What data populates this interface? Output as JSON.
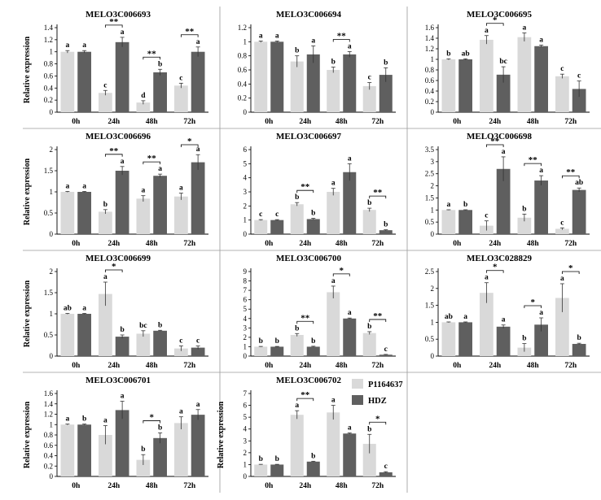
{
  "colors": {
    "P1164637": "#d9d9d9",
    "HDZ": "#5f5f5f",
    "axis": "#000000",
    "divider": "#9a9a9a"
  },
  "legend": {
    "items": [
      {
        "name": "P1164637"
      },
      {
        "name": "HDZ"
      }
    ],
    "placement": "top-left of panel 11"
  },
  "chart_data": [
    {
      "type": "bar",
      "title": "MELO3C006693",
      "ylabel": "Relative expression",
      "categories": [
        "0h",
        "24h",
        "48h",
        "72h"
      ],
      "ylim": [
        0,
        1.4
      ],
      "yticks": [
        "0",
        "0.2",
        "0.4",
        "0.6",
        "0.8",
        "1",
        "1.2",
        "1.4"
      ],
      "series": [
        {
          "name": "P1164637",
          "values": [
            1,
            0.32,
            0.16,
            0.44
          ],
          "err": [
            0.02,
            0.04,
            0.03,
            0.04
          ],
          "letters": [
            "a",
            "c",
            "d",
            "c"
          ]
        },
        {
          "name": "HDZ",
          "values": [
            1,
            1.16,
            0.66,
            1.0
          ],
          "err": [
            0.02,
            0.08,
            0.05,
            0.08
          ],
          "letters": [
            "a",
            "a",
            "b",
            "a"
          ]
        }
      ],
      "sig": [
        "",
        "**",
        "**",
        "**"
      ]
    },
    {
      "type": "bar",
      "title": "MELO3C006694",
      "ylabel": "",
      "categories": [
        "0h",
        "24h",
        "48h",
        "72h"
      ],
      "ylim": [
        0,
        1.2
      ],
      "yticks": [
        "0",
        "0.2",
        "0.4",
        "0.6",
        "0.8",
        "1",
        "1.2"
      ],
      "series": [
        {
          "name": "P1164637",
          "values": [
            1,
            0.72,
            0.6,
            0.37
          ],
          "err": [
            0.01,
            0.08,
            0.04,
            0.05
          ],
          "letters": [
            "a",
            "b",
            "b",
            "c"
          ]
        },
        {
          "name": "HDZ",
          "values": [
            1,
            0.82,
            0.82,
            0.53
          ],
          "err": [
            0.01,
            0.12,
            0.04,
            0.1
          ],
          "letters": [
            "a",
            "a",
            "a",
            "b"
          ]
        }
      ],
      "sig": [
        "",
        "",
        "**",
        ""
      ]
    },
    {
      "type": "bar",
      "title": "MELO3C006695",
      "ylabel": "",
      "categories": [
        "0h",
        "24h",
        "48h",
        "72h"
      ],
      "ylim": [
        0,
        1.6
      ],
      "yticks": [
        "0",
        "0.2",
        "0.4",
        "0.6",
        "0.8",
        "1",
        "1.2",
        "1.4",
        "1.6"
      ],
      "series": [
        {
          "name": "P1164637",
          "values": [
            1,
            1.37,
            1.42,
            0.68
          ],
          "err": [
            0.01,
            0.08,
            0.08,
            0.04
          ],
          "letters": [
            "b",
            "a",
            "a",
            "c"
          ]
        },
        {
          "name": "HDZ",
          "values": [
            1,
            0.71,
            1.25,
            0.44
          ],
          "err": [
            0.01,
            0.15,
            0.02,
            0.15
          ],
          "letters": [
            "ab",
            "bc",
            "a",
            "c"
          ]
        }
      ],
      "sig": [
        "",
        "*",
        "",
        ""
      ]
    },
    {
      "type": "bar",
      "title": "MELO3C006696",
      "ylabel": "Relative expression",
      "categories": [
        "0h",
        "24h",
        "48h",
        "72h"
      ],
      "ylim": [
        0,
        2
      ],
      "yticks": [
        "0",
        "0.5",
        "1",
        "1.5",
        "2"
      ],
      "series": [
        {
          "name": "P1164637",
          "values": [
            1,
            0.53,
            0.84,
            0.89
          ],
          "err": [
            0.01,
            0.05,
            0.07,
            0.08
          ],
          "letters": [
            "a",
            "b",
            "a",
            "a"
          ]
        },
        {
          "name": "HDZ",
          "values": [
            1,
            1.5,
            1.38,
            1.7
          ],
          "err": [
            0.01,
            0.1,
            0.04,
            0.18
          ],
          "letters": [
            "a",
            "a",
            "a",
            "a"
          ]
        }
      ],
      "sig": [
        "",
        "**",
        "**",
        "*"
      ]
    },
    {
      "type": "bar",
      "title": "MELO3C006697",
      "ylabel": "",
      "categories": [
        "0h",
        "24h",
        "48h",
        "72h"
      ],
      "ylim": [
        0,
        6
      ],
      "yticks": [
        "0",
        "1",
        "2",
        "3",
        "4",
        "5",
        "6"
      ],
      "series": [
        {
          "name": "P1164637",
          "values": [
            1,
            2.12,
            3.0,
            1.72
          ],
          "err": [
            0.03,
            0.12,
            0.25,
            0.12
          ],
          "letters": [
            "c",
            "b",
            "a",
            "b"
          ]
        },
        {
          "name": "HDZ",
          "values": [
            1,
            1.07,
            4.4,
            0.28
          ],
          "err": [
            0.03,
            0.05,
            0.6,
            0.03
          ],
          "letters": [
            "c",
            "b",
            "a",
            "b"
          ]
        }
      ],
      "sig": [
        "",
        "**",
        "",
        "**"
      ]
    },
    {
      "type": "bar",
      "title": "MELO3C006698",
      "ylabel": "",
      "categories": [
        "0h",
        "24h",
        "48h",
        "72h"
      ],
      "ylim": [
        0,
        3.5
      ],
      "yticks": [
        "0",
        "0.5",
        "1",
        "1.5",
        "2",
        "2.5",
        "3",
        "3.5"
      ],
      "series": [
        {
          "name": "P1164637",
          "values": [
            1,
            0.35,
            0.68,
            0.22
          ],
          "err": [
            0.01,
            0.2,
            0.15,
            0.04
          ],
          "letters": [
            "a",
            "c",
            "b",
            "c"
          ]
        },
        {
          "name": "HDZ",
          "values": [
            1,
            2.7,
            2.22,
            1.83
          ],
          "err": [
            0.01,
            0.5,
            0.2,
            0.08
          ],
          "letters": [
            "b",
            "a",
            "a",
            "ab"
          ]
        }
      ],
      "sig": [
        "",
        "**",
        "**",
        "**"
      ]
    },
    {
      "type": "bar",
      "title": "MELO3C006699",
      "ylabel": "Relative expression",
      "categories": [
        "0h",
        "24h",
        "48h",
        "72h"
      ],
      "ylim": [
        0,
        2
      ],
      "yticks": [
        "0",
        "0.5",
        "1",
        "1.5",
        "2"
      ],
      "series": [
        {
          "name": "P1164637",
          "values": [
            1,
            1.47,
            0.53,
            0.18
          ],
          "err": [
            0.01,
            0.28,
            0.07,
            0.06
          ],
          "letters": [
            "ab",
            "a",
            "bc",
            "c"
          ]
        },
        {
          "name": "HDZ",
          "values": [
            1,
            0.46,
            0.6,
            0.2
          ],
          "err": [
            0.01,
            0.04,
            0.01,
            0.04
          ],
          "letters": [
            "a",
            "b",
            "b",
            "c"
          ]
        }
      ],
      "sig": [
        "",
        "*",
        "",
        ""
      ]
    },
    {
      "type": "bar",
      "title": "MELO3C006700",
      "ylabel": "",
      "categories": [
        "0h",
        "24h",
        "48h",
        "72h"
      ],
      "ylim": [
        0,
        9
      ],
      "yticks": [
        "0",
        "1",
        "2",
        "3",
        "4",
        "5",
        "6",
        "7",
        "8",
        "9"
      ],
      "series": [
        {
          "name": "P1164637",
          "values": [
            1,
            2.25,
            6.8,
            2.45
          ],
          "err": [
            0.03,
            0.15,
            0.65,
            0.15
          ],
          "letters": [
            "b",
            "b",
            "a",
            "b"
          ]
        },
        {
          "name": "HDZ",
          "values": [
            1,
            1.0,
            4.0,
            0.15
          ],
          "err": [
            0.03,
            0.05,
            0.05,
            0.03
          ],
          "letters": [
            "b",
            "b",
            "a",
            "c"
          ]
        }
      ],
      "sig": [
        "",
        "**",
        "*",
        "**"
      ]
    },
    {
      "type": "bar",
      "title": "MELO3C028829",
      "ylabel": "",
      "categories": [
        "0h",
        "24h",
        "48h",
        "72h"
      ],
      "ylim": [
        0,
        2.5
      ],
      "yticks": [
        "0",
        "0.5",
        "1",
        "1.5",
        "2",
        "2.5"
      ],
      "series": [
        {
          "name": "P1164637",
          "values": [
            1,
            1.87,
            0.25,
            1.72
          ],
          "err": [
            0.01,
            0.3,
            0.12,
            0.42
          ],
          "letters": [
            "ab",
            "a",
            "b",
            "a"
          ]
        },
        {
          "name": "HDZ",
          "values": [
            1,
            0.87,
            0.93,
            0.36
          ],
          "err": [
            0.01,
            0.05,
            0.2,
            0.02
          ],
          "letters": [
            "a",
            "a",
            "a",
            "b"
          ]
        }
      ],
      "sig": [
        "",
        "*",
        "*",
        "*"
      ]
    },
    {
      "type": "bar",
      "title": "MELO3C006701",
      "ylabel": "Relative expression",
      "categories": [
        "0h",
        "24h",
        "48h",
        "72h"
      ],
      "ylim": [
        0,
        1.6
      ],
      "yticks": [
        "0",
        "0.2",
        "0.4",
        "0.6",
        "0.8",
        "1",
        "1.2",
        "1.4",
        "1.6"
      ],
      "series": [
        {
          "name": "P1164637",
          "values": [
            1,
            0.8,
            0.32,
            1.03
          ],
          "err": [
            0.01,
            0.18,
            0.1,
            0.12
          ],
          "letters": [
            "a",
            "a",
            "b",
            "a"
          ]
        },
        {
          "name": "HDZ",
          "values": [
            1,
            1.28,
            0.74,
            1.19
          ],
          "err": [
            0.01,
            0.17,
            0.1,
            0.1
          ],
          "letters": [
            "b",
            "a",
            "b",
            "a"
          ]
        }
      ],
      "sig": [
        "",
        "",
        "*",
        ""
      ]
    },
    {
      "type": "bar",
      "title": "MELO3C006702",
      "ylabel": "Relative expression",
      "categories": [
        "0h",
        "24h",
        "48h",
        "72h"
      ],
      "ylim": [
        0,
        7
      ],
      "yticks": [
        "0",
        "1",
        "2",
        "3",
        "4",
        "5",
        "6",
        "7"
      ],
      "series": [
        {
          "name": "P1164637",
          "values": [
            1,
            5.2,
            5.4,
            2.75
          ],
          "err": [
            0.02,
            0.35,
            0.6,
            0.8
          ],
          "letters": [
            "b",
            "a",
            "a",
            "b"
          ]
        },
        {
          "name": "HDZ",
          "values": [
            1,
            1.25,
            3.62,
            0.35
          ],
          "err": [
            0.02,
            0.03,
            0.05,
            0.05
          ],
          "letters": [
            "b",
            "b",
            "a",
            "c"
          ]
        }
      ],
      "sig": [
        "",
        "**",
        "",
        "*"
      ]
    }
  ]
}
